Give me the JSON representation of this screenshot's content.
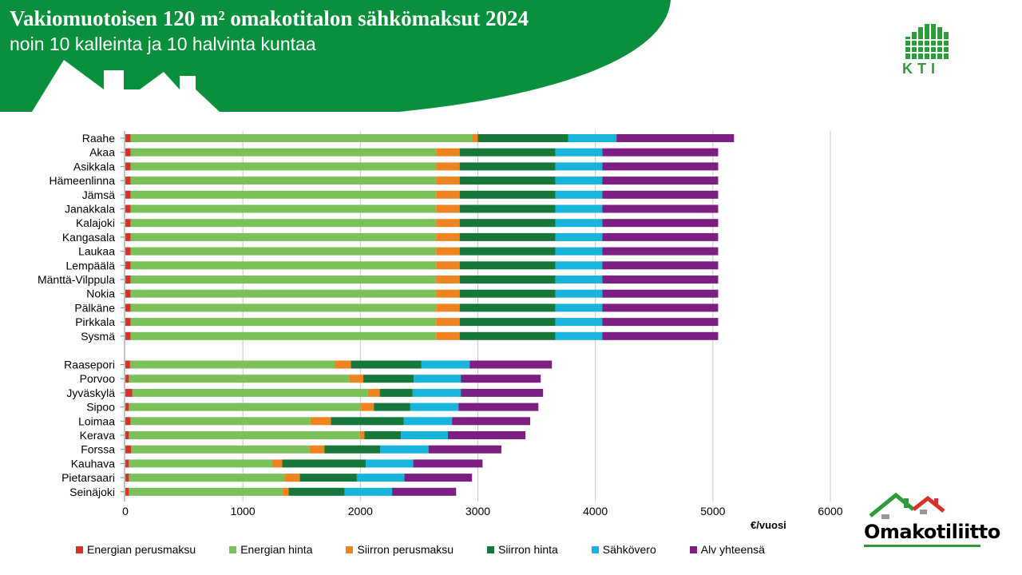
{
  "header": {
    "title": "Vakiomuotoisen 120 m² omakotitalon sähkömaksut 2024",
    "subtitle": "noin 10 kalleinta ja 10 halvinta kuntaa"
  },
  "logos": {
    "kti_text": "KTI",
    "omakotiliitto_text": "Omakotiliitto"
  },
  "colors": {
    "header_green": "#0a8f3c",
    "energian_perusmaksu": "#d8312a",
    "energian_hinta": "#7cc05a",
    "siirron_perusmaksu": "#ee8320",
    "siirron_hinta": "#17773a",
    "sahkovero": "#18b4dc",
    "alv_yhteensa": "#7d1f82"
  },
  "chart_data": {
    "type": "bar",
    "orientation": "horizontal",
    "stacked": true,
    "xlabel": "€/vuosi",
    "xlim": [
      0,
      6000
    ],
    "xticks": [
      0,
      1000,
      2000,
      3000,
      4000,
      5000,
      6000
    ],
    "grid": true,
    "legend_position": "bottom",
    "categories": [
      "Raahe",
      "Akaa",
      "Asikkala",
      "Hämeenlinna",
      "Jämsä",
      "Janakkala",
      "Kalajoki",
      "Kangasala",
      "Laukaa",
      "Lempäälä",
      "Mänttä-Vilppula",
      "Nokia",
      "Pälkäne",
      "Pirkkala",
      "Sysmä",
      "Raasepori",
      "Porvoo",
      "Jyväskylä",
      "Sipoo",
      "Loimaa",
      "Kerava",
      "Forssa",
      "Kauhava",
      "Pietarsaari",
      "Seinäjoki"
    ],
    "series": [
      {
        "name": "Energian perusmaksu",
        "values": [
          45,
          45,
          45,
          45,
          45,
          45,
          45,
          45,
          45,
          45,
          45,
          45,
          45,
          45,
          45,
          40,
          30,
          60,
          30,
          45,
          30,
          50,
          30,
          30,
          30
        ]
      },
      {
        "name": "Energian hinta",
        "values": [
          2905,
          2600,
          2600,
          2600,
          2600,
          2600,
          2600,
          2600,
          2600,
          2600,
          2600,
          2600,
          2600,
          2600,
          2600,
          1740,
          1875,
          2005,
          1975,
          1530,
          1965,
          1515,
          1220,
          1325,
          1310
        ]
      },
      {
        "name": "Siirron perusmaksu",
        "values": [
          50,
          200,
          200,
          200,
          200,
          200,
          200,
          200,
          200,
          200,
          200,
          200,
          200,
          200,
          200,
          140,
          120,
          100,
          110,
          175,
          40,
          130,
          85,
          130,
          50
        ]
      },
      {
        "name": "Siirron hinta",
        "values": [
          770,
          815,
          815,
          815,
          815,
          815,
          815,
          815,
          815,
          815,
          815,
          815,
          815,
          815,
          815,
          600,
          430,
          280,
          310,
          620,
          310,
          475,
          710,
          485,
          475
        ]
      },
      {
        "name": "Sähkövero",
        "values": [
          410,
          400,
          400,
          400,
          400,
          400,
          400,
          400,
          400,
          400,
          400,
          400,
          400,
          400,
          400,
          410,
          400,
          410,
          410,
          410,
          400,
          410,
          405,
          405,
          405
        ]
      },
      {
        "name": "Alv yhteensä",
        "values": [
          1000,
          985,
          985,
          985,
          985,
          985,
          985,
          985,
          985,
          985,
          985,
          985,
          985,
          985,
          985,
          700,
          680,
          700,
          680,
          665,
          660,
          620,
          590,
          575,
          545
        ]
      }
    ]
  }
}
